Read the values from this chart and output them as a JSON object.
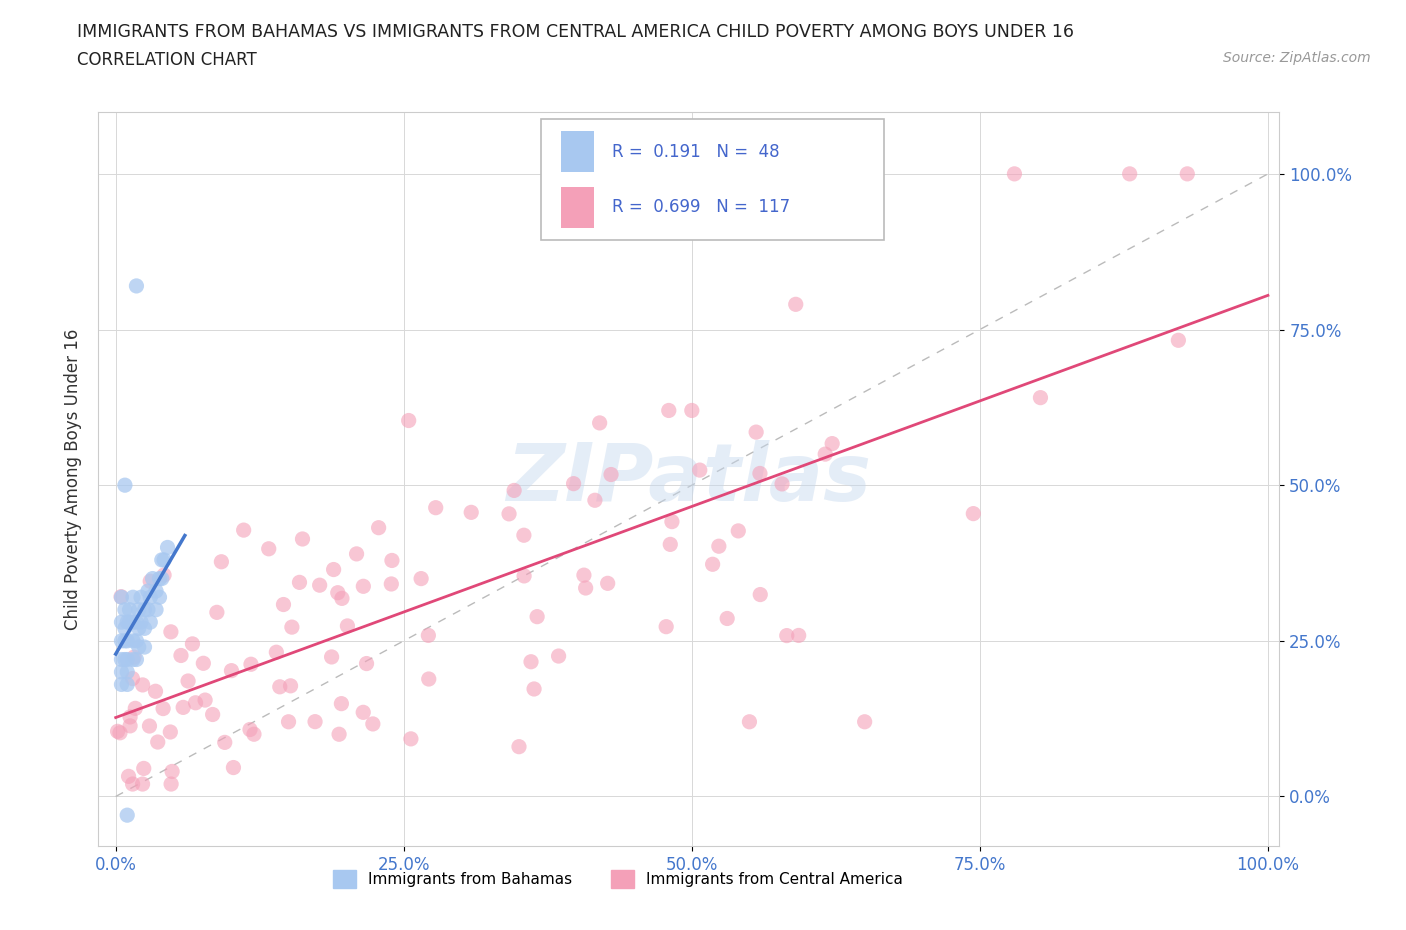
{
  "title": "IMMIGRANTS FROM BAHAMAS VS IMMIGRANTS FROM CENTRAL AMERICA CHILD POVERTY AMONG BOYS UNDER 16",
  "subtitle": "CORRELATION CHART",
  "source": "Source: ZipAtlas.com",
  "ylabel": "Child Poverty Among Boys Under 16",
  "r_bahamas": 0.191,
  "n_bahamas": 48,
  "r_central": 0.699,
  "n_central": 117,
  "color_bahamas": "#a8c8f0",
  "color_central": "#f4a0b8",
  "trendline_bahamas": "#4477cc",
  "trendline_central": "#e04878",
  "watermark": "ZIPatlas",
  "yticks": [
    0.0,
    0.25,
    0.5,
    0.75,
    1.0
  ],
  "xticks": [
    0.0,
    0.25,
    0.5,
    0.75,
    1.0
  ],
  "legend_label_bahamas": "Immigrants from Bahamas",
  "legend_label_central": "Immigrants from Central America"
}
